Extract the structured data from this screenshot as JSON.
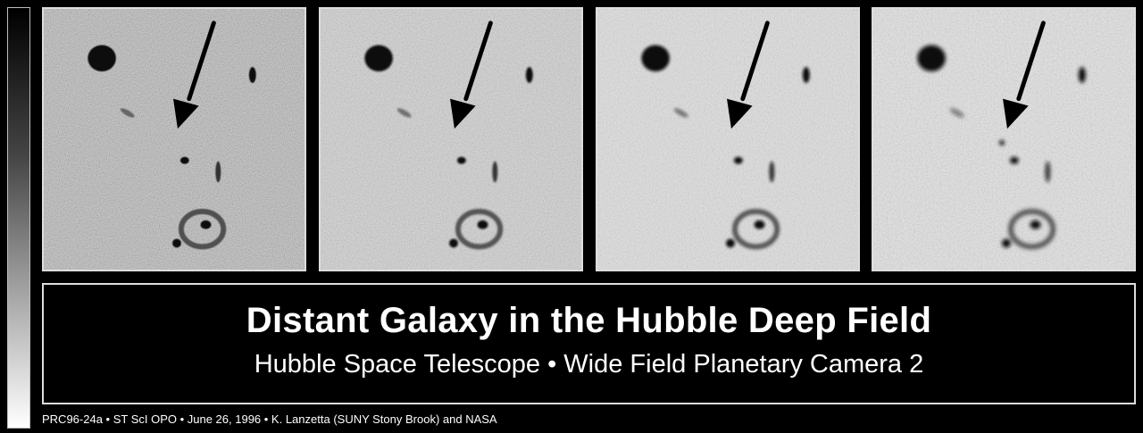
{
  "title": "Distant Galaxy in the Hubble Deep Field",
  "subtitle": "Hubble Space Telescope • Wide Field Planetary Camera 2",
  "credits": "PRC96-24a • ST ScI OPO • June 26, 1996 • K. Lanzetta (SUNY Stony Brook) and NASA",
  "panels": [
    {
      "name": "image-panel-1",
      "noise_level": 1.0
    },
    {
      "name": "image-panel-2",
      "noise_level": 0.55
    },
    {
      "name": "image-panel-3",
      "noise_level": 0.25
    },
    {
      "name": "image-panel-4",
      "noise_level": 0.18
    }
  ]
}
